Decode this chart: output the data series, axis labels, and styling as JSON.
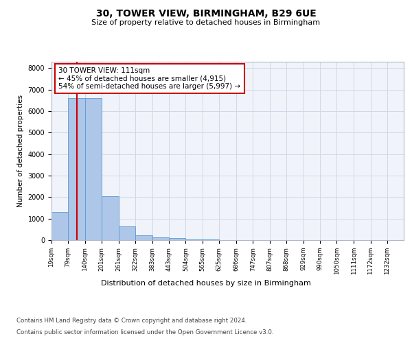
{
  "title1": "30, TOWER VIEW, BIRMINGHAM, B29 6UE",
  "title2": "Size of property relative to detached houses in Birmingham",
  "xlabel": "Distribution of detached houses by size in Birmingham",
  "ylabel": "Number of detached properties",
  "annotation_title": "30 TOWER VIEW: 111sqm",
  "annotation_line1": "← 45% of detached houses are smaller (4,915)",
  "annotation_line2": "54% of semi-detached houses are larger (5,997) →",
  "footer1": "Contains HM Land Registry data © Crown copyright and database right 2024.",
  "footer2": "Contains public sector information licensed under the Open Government Licence v3.0.",
  "bar_edges": [
    19,
    79,
    140,
    201,
    261,
    322,
    383,
    443,
    504,
    565,
    625,
    686,
    747,
    807,
    868,
    929,
    990,
    1050,
    1111,
    1172,
    1232
  ],
  "bar_heights": [
    1300,
    6600,
    6600,
    2050,
    650,
    230,
    130,
    80,
    40,
    20,
    15,
    10,
    8,
    5,
    4,
    3,
    2,
    2,
    1,
    1
  ],
  "bar_color": "#aec6e8",
  "bar_edge_color": "#5a9bd5",
  "red_line_x": 111,
  "ylim": [
    0,
    8300
  ],
  "yticks": [
    0,
    1000,
    2000,
    3000,
    4000,
    5000,
    6000,
    7000,
    8000
  ],
  "grid_color": "#d0d8e8",
  "annotation_box_color": "#ffffff",
  "annotation_box_edge": "#cc0000",
  "red_line_color": "#cc0000",
  "bg_color": "#f0f4fa"
}
